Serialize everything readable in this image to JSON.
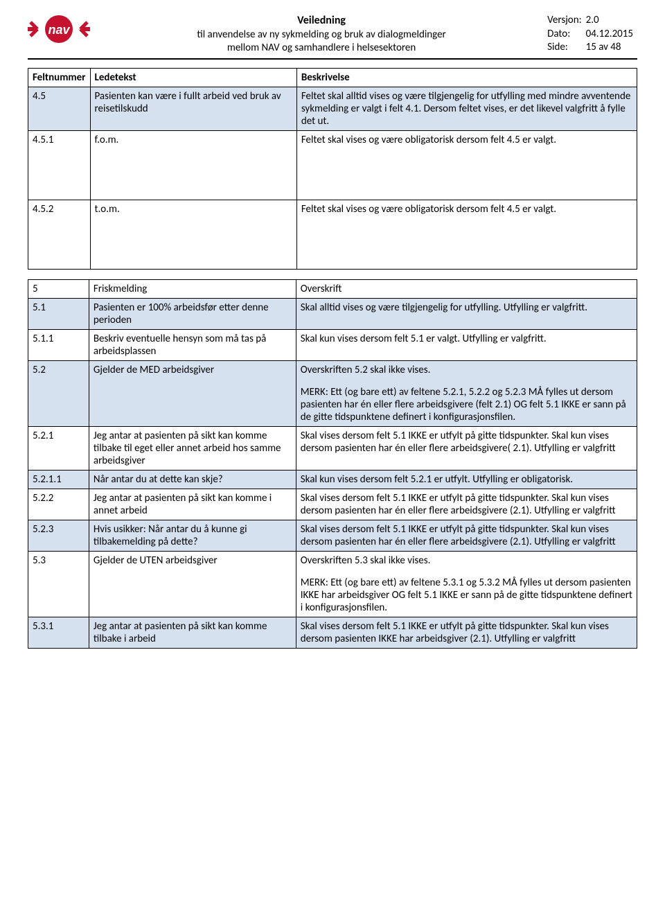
{
  "header": {
    "title": "Veiledning",
    "subtitle1": "til anvendelse av ny sykmelding og bruk av dialogmeldinger",
    "subtitle2": "mellom NAV og samhandlere i helsesektoren",
    "version_label": "Versjon:",
    "version_value": "2.0",
    "date_label": "Dato:",
    "date_value": "04.12.2015",
    "page_label": "Side:",
    "page_value": "15 av 48",
    "logo_bg": "#c4122f",
    "logo_text": "nav"
  },
  "columns": {
    "feltnummer": "Feltnummer",
    "ledetekst": "Ledetekst",
    "beskrivelse": "Beskrivelse"
  },
  "table1": {
    "rows": [
      {
        "num": "4.5",
        "led": "Pasienten kan være i fullt arbeid ved bruk av reisetilskudd",
        "besk": "Feltet skal alltid vises og være tilgjengelig for utfylling med mindre avventende sykmelding er valgt i felt 4.1. Dersom feltet vises, er det likevel valgfritt å fylle det ut.",
        "hl": true
      },
      {
        "num": "4.5.1",
        "led": "f.o.m.",
        "besk": "Feltet skal vises og være obligatorisk dersom felt 4.5 er valgt.",
        "hl": false,
        "tall": true
      },
      {
        "num": "4.5.2",
        "led": "t.o.m.",
        "besk": "Feltet skal vises og være obligatorisk dersom felt 4.5 er valgt.",
        "hl": false,
        "tall": true
      }
    ]
  },
  "table2": {
    "rows": [
      {
        "num": "5",
        "led": "Friskmelding",
        "besk": "Overskrift",
        "hl": false
      },
      {
        "num": "5.1",
        "led": "Pasienten er 100% arbeidsfør etter denne perioden",
        "besk": "Skal alltid vises og være tilgjengelig for utfylling. Utfylling er valgfritt.",
        "hl": true
      },
      {
        "num": "5.1.1",
        "led": "Beskriv eventuelle hensyn som må tas på arbeidsplassen",
        "besk": "Skal kun vises dersom felt 5.1 er valgt. Utfylling er valgfritt.",
        "hl": false
      },
      {
        "num": "5.2",
        "led": "Gjelder de MED arbeidsgiver",
        "besk_parts": [
          "Overskriften 5.2 skal ikke vises.",
          "MERK: Ett (og bare ett) av feltene 5.2.1, 5.2.2 og 5.2.3 MÅ fylles ut dersom pasienten har én eller flere arbeidsgivere (felt 2.1) OG felt 5.1 IKKE er sann på de gitte tidspunktene definert i konfigurasjonsfilen."
        ],
        "hl": true
      },
      {
        "num": "5.2.1",
        "led": "Jeg antar at pasienten på sikt kan komme tilbake til eget eller annet arbeid hos samme arbeidsgiver",
        "besk": "Skal vises dersom felt 5.1 IKKE er utfylt på gitte tidspunkter. Skal kun vises dersom pasienten har én eller flere arbeidsgivere( 2.1). Utfylling er valgfritt",
        "hl": false
      },
      {
        "num": "5.2.1.1",
        "led": "Når antar du at dette kan skje?",
        "besk": "Skal kun vises dersom felt 5.2.1 er utfylt. Utfylling er obligatorisk.",
        "hl": true
      },
      {
        "num": "5.2.2",
        "led": "Jeg antar at pasienten på sikt kan komme i annet arbeid",
        "besk": "Skal vises dersom felt 5.1 IKKE er utfylt på gitte tidspunkter. Skal kun vises dersom pasienten har én eller flere arbeidsgivere (2.1). Utfylling er valgfritt",
        "hl": false
      },
      {
        "num": "5.2.3",
        "led": "Hvis usikker: Når antar du å kunne gi tilbakemelding på dette?",
        "besk": "Skal vises dersom felt 5.1 IKKE er utfylt på gitte tidspunkter. Skal kun vises dersom pasienten har én eller flere arbeidsgivere (2.1). Utfylling er valgfritt",
        "hl": true
      },
      {
        "num": "5.3",
        "led": "Gjelder de UTEN arbeidsgiver",
        "besk_parts": [
          "Overskriften 5.3 skal ikke vises.",
          "MERK: Ett (og bare ett) av feltene 5.3.1 og 5.3.2 MÅ fylles ut dersom pasienten IKKE har arbeidsgiver OG felt 5.1 IKKE er sann på de gitte tidspunktene definert i konfigurasjonsfilen."
        ],
        "hl": false
      },
      {
        "num": "5.3.1",
        "led": "Jeg antar at pasienten på sikt kan komme tilbake i arbeid",
        "besk": "Skal vises dersom felt 5.1 IKKE er utfylt på gitte tidspunkter. Skal kun vises dersom pasienten IKKE har arbeidsgiver (2.1). Utfylling er valgfritt",
        "hl": true
      }
    ]
  }
}
